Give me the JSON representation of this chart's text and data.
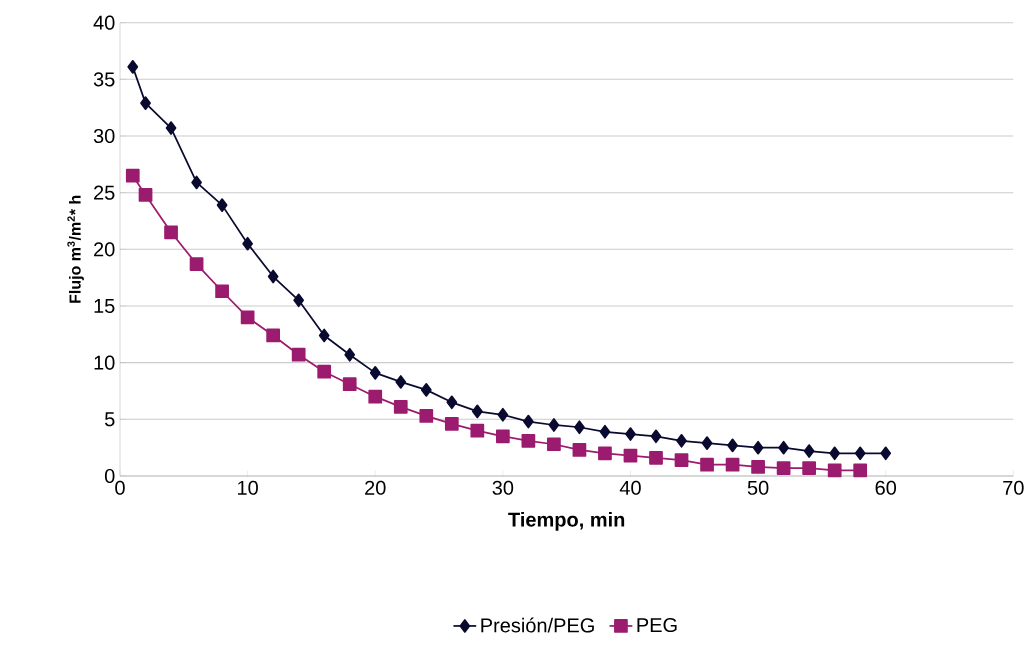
{
  "chart_data": {
    "type": "line",
    "xlabel": "Tiempo, min",
    "ylabel": "Flujo m$^{3}$/m$^{2}$* h",
    "xlim": [
      0,
      70
    ],
    "xticks": [
      0,
      10,
      20,
      30,
      40,
      50,
      60,
      70
    ],
    "ylim": [
      0,
      40
    ],
    "yticks": [
      0,
      5,
      10,
      15,
      20,
      25,
      30,
      35,
      40
    ],
    "grid": "y",
    "legend": "bottom",
    "line_style": "solid",
    "series": [
      {
        "name": "Presión/PEG",
        "color": "#0a0a30",
        "marker": "diamond",
        "x": [
          1,
          2,
          4,
          6,
          8,
          10,
          12,
          14,
          16,
          18,
          20,
          22,
          24,
          26,
          28,
          30,
          32,
          34,
          36,
          38,
          40,
          42,
          44,
          46,
          48,
          50,
          52,
          54,
          56,
          58,
          60
        ],
        "values": [
          36.1,
          32.9,
          30.7,
          25.9,
          23.9,
          20.5,
          17.6,
          15.5,
          12.4,
          10.7,
          9.1,
          8.3,
          7.6,
          6.5,
          5.7,
          5.4,
          4.8,
          4.5,
          4.3,
          3.9,
          3.7,
          3.5,
          3.1,
          2.9,
          2.7,
          2.5,
          2.5,
          2.2,
          2.0,
          2.0,
          2.0
        ]
      },
      {
        "name": "PEG",
        "color": "#9b1b6e",
        "marker": "square",
        "x": [
          1,
          2,
          4,
          6,
          8,
          10,
          12,
          14,
          16,
          18,
          20,
          22,
          24,
          26,
          28,
          30,
          32,
          34,
          36,
          38,
          40,
          42,
          44,
          46,
          48,
          50,
          52,
          54,
          56,
          58
        ],
        "values": [
          26.5,
          24.8,
          21.5,
          18.7,
          16.3,
          14.0,
          12.4,
          10.7,
          9.2,
          8.1,
          7.0,
          6.1,
          5.3,
          4.6,
          4.0,
          3.5,
          3.1,
          2.8,
          2.3,
          2.0,
          1.8,
          1.6,
          1.4,
          1.0,
          1.0,
          0.8,
          0.7,
          0.7,
          0.5,
          0.5
        ]
      }
    ]
  }
}
